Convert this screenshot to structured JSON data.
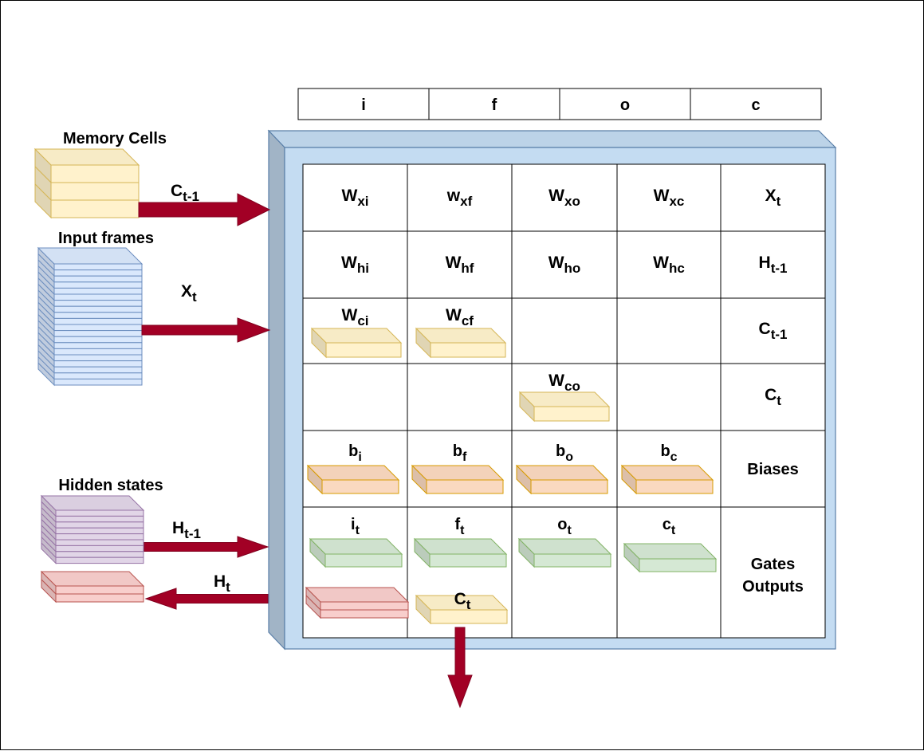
{
  "header_gates": [
    "i",
    "f",
    "o",
    "c"
  ],
  "left_labels": {
    "memory_cells": "Memory Cells",
    "input_frames": "Input frames",
    "hidden_states": "Hidden states"
  },
  "arrows": [
    {
      "name": "c-prev-arrow",
      "base": "C",
      "sub": "t-1"
    },
    {
      "name": "x-arrow",
      "base": "X",
      "sub": "t"
    },
    {
      "name": "h-prev-arrow",
      "base": "H",
      "sub": "t-1"
    },
    {
      "name": "h-out-arrow",
      "base": "H",
      "sub": "t"
    }
  ],
  "grid": [
    [
      {
        "base": "W",
        "sub": "xi"
      },
      {
        "base": "w",
        "sub": "xf"
      },
      {
        "base": "W",
        "sub": "xo"
      },
      {
        "base": "W",
        "sub": "xc"
      },
      {
        "base": "X",
        "sub": "t"
      }
    ],
    [
      {
        "base": "W",
        "sub": "hi"
      },
      {
        "base": "W",
        "sub": "hf"
      },
      {
        "base": "W",
        "sub": "ho"
      },
      {
        "base": "W",
        "sub": "hc"
      },
      {
        "base": "H",
        "sub": "t-1"
      }
    ],
    [
      {
        "base": "W",
        "sub": "ci",
        "slab": "peephole"
      },
      {
        "base": "W",
        "sub": "cf",
        "slab": "peephole"
      },
      null,
      null,
      {
        "base": "C",
        "sub": "t-1"
      }
    ],
    [
      null,
      null,
      {
        "base": "W",
        "sub": "co",
        "slab": "peephole"
      },
      null,
      {
        "base": "C",
        "sub": "t"
      }
    ],
    [
      {
        "base": "b",
        "sub": "i",
        "slab": "bias"
      },
      {
        "base": "b",
        "sub": "f",
        "slab": "bias"
      },
      {
        "base": "b",
        "sub": "o",
        "slab": "bias"
      },
      {
        "base": "b",
        "sub": "c",
        "slab": "bias"
      },
      {
        "text": "Biases"
      }
    ],
    [
      {
        "base": "i",
        "sub": "t",
        "slab": "gate"
      },
      {
        "base": "f",
        "sub": "t",
        "slab": "gate"
      },
      {
        "base": "o",
        "sub": "t",
        "slab": "gate"
      },
      {
        "base": "c",
        "sub": "t",
        "slab": "gate"
      },
      {
        "lines": [
          "Gates",
          "Outputs"
        ]
      }
    ]
  ],
  "cell_state_output": {
    "base": "C",
    "sub": "t"
  },
  "colors": {
    "arrow": "#a20025",
    "memory_front": "#fff2cc",
    "memory_stroke": "#d6b656",
    "input_front": "#dae8fc",
    "input_stroke": "#6c8ebf",
    "hidden_front": "#e1d5e7",
    "hidden_stroke": "#9673a6",
    "output_front": "#f8cecc",
    "output_stroke": "#b85450",
    "bias_front": "#fad9c0",
    "bias_stroke": "#d79b00",
    "gate_front": "#d5e8d4",
    "gate_stroke": "#82b366",
    "peephole_front": "#fff2cc",
    "peephole_stroke": "#d6b656",
    "panel_face": "#c4dcf2",
    "panel_stroke": "#5a7fa8"
  }
}
